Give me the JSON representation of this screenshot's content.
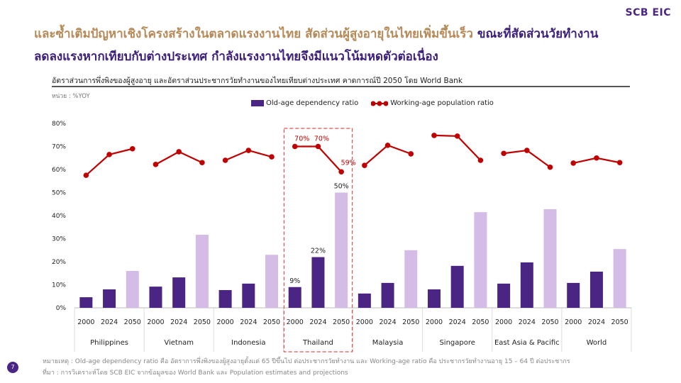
{
  "logo": "SCB EIC",
  "title": {
    "part1": "และซ้ำเติมปัญหาเชิงโครงสร้างในตลาดแรงงานไทย สัดส่วนผู้สูงอายุในไทยเพิ่มขึ้นเร็ว",
    "part2": "ขณะที่สัดส่วนวัยทำงาน",
    "line2": "ลดลงแรงหากเทียบกับต่างประเทศ กำลังแรงงานไทยจึงมีแนวโน้มหดตัวต่อเนื่อง"
  },
  "subtitle": "อัตราส่วนการพึ่งพิงของผู้สูงอายุ และอัตราส่วนประชากรวัยทำงานของไทยเทียบต่างประเทศ คาดการณ์ปี 2050 โดย World Bank",
  "unit": "หน่วย : %YOY",
  "footnote": "หมายเหตุ : Old-age dependency ratio คือ อัตราการพึ่งพิงของผู้สูงอายุตั้งแต่ 65 ปีขึ้นไป ต่อประชากรวัยทำงาน และ Working-age ratio คือ ประชากรวัยทำงานอายุ 15 – 64 ปี ต่อประชากร",
  "source": "ที่มา : การวิเคราะห์โดย SCB EIC จากข้อมูลของ World Bank และ Population estimates and projections",
  "page_number": "7",
  "colors": {
    "bar_dark": "#4b2583",
    "bar_light": "#d5bce6",
    "line": "#c00000",
    "highlight": "#e05050"
  },
  "chart_data": {
    "type": "bar+line",
    "legend": [
      "Old-age dependency ratio",
      "Working-age population ratio"
    ],
    "ylim": [
      0,
      80
    ],
    "yticks": [
      "0%",
      "10%",
      "20%",
      "30%",
      "40%",
      "50%",
      "60%",
      "70%",
      "80%"
    ],
    "years": [
      "2000",
      "2024",
      "2050"
    ],
    "groups": [
      "Philippines",
      "Vietnam",
      "Indonesia",
      "Thailand",
      "Malaysia",
      "Singapore",
      "East Asia & Pacific",
      "World"
    ],
    "old_age": [
      [
        4.6,
        8,
        16
      ],
      [
        9.2,
        13.2,
        31.7
      ],
      [
        7.7,
        10.5,
        23
      ],
      [
        9,
        22,
        50
      ],
      [
        6.2,
        10.8,
        25
      ],
      [
        8,
        18.2,
        41.5
      ],
      [
        10.5,
        19.7,
        42.8
      ],
      [
        10.8,
        15.7,
        25.5
      ]
    ],
    "working_age": [
      [
        57.5,
        66.5,
        69
      ],
      [
        62.2,
        67.7,
        63
      ],
      [
        64,
        68.3,
        65.5
      ],
      [
        70,
        70,
        59
      ],
      [
        61.8,
        70.5,
        66.8
      ],
      [
        74.8,
        74.5,
        64
      ],
      [
        67,
        68.3,
        61
      ],
      [
        62.8,
        65,
        63
      ]
    ],
    "labels_thailand": {
      "bars": [
        "9%",
        "22%",
        "50%"
      ],
      "line": [
        "70%",
        "70%",
        "59%"
      ]
    },
    "highlight_group": "Thailand"
  }
}
